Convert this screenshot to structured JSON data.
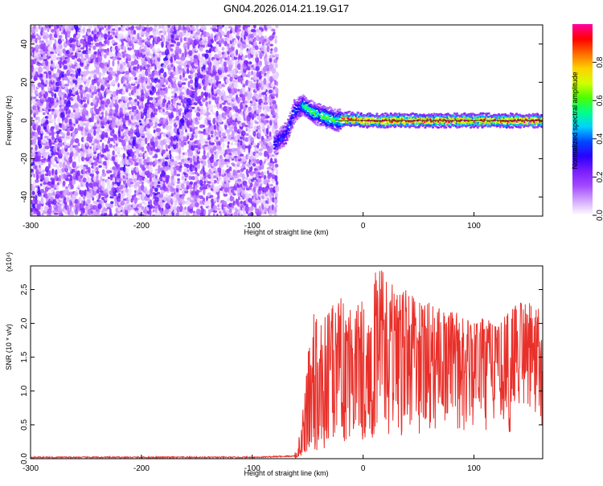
{
  "title": "GN04.2026.014.21.19.G17",
  "chart_data": [
    {
      "type": "heatmap",
      "title": "GN04.2026.014.21.19.G17",
      "xlabel": "Height of straight line (km)",
      "ylabel": "Frequency (Hz)",
      "xlim": [
        -300,
        162
      ],
      "ylim": [
        -50,
        50
      ],
      "x_ticks": [
        -300,
        -200,
        -100,
        0,
        100
      ],
      "y_ticks": [
        -40,
        -20,
        0,
        20,
        40
      ],
      "colorbar": {
        "label": "Normalized spectral amplitude",
        "range": [
          0.0,
          1.0
        ],
        "ticks": [
          0.0,
          0.2,
          0.4,
          0.6,
          0.8
        ],
        "colormap": [
          "#ffffff",
          "#d3a6ff",
          "#a349ff",
          "#7a1dff",
          "#2a00ff",
          "#0047ff",
          "#00d0ff",
          "#00ff8c",
          "#4cff00",
          "#d2ff00",
          "#ffd000",
          "#ff6a00",
          "#ff0000",
          "#ff00a0"
        ]
      },
      "noise_region_x": [
        -300,
        -78
      ],
      "doppler_trace": [
        {
          "x": -80,
          "f": -12
        },
        {
          "x": -70,
          "f": -7
        },
        {
          "x": -62,
          "f": 5
        },
        {
          "x": -55,
          "f": 8
        },
        {
          "x": -45,
          "f": 4
        },
        {
          "x": -35,
          "f": 2
        },
        {
          "x": -25,
          "f": 0
        },
        {
          "x": -15,
          "f": 1
        },
        {
          "x": 0,
          "f": 0
        },
        {
          "x": 162,
          "f": 0
        }
      ]
    },
    {
      "type": "line",
      "xlabel": "Height of straight line (km)",
      "ylabel": "SNR (10 * v/v)",
      "y_scale_label": "(x10⁴)",
      "xlim": [
        -300,
        162
      ],
      "ylim": [
        0,
        2.85
      ],
      "x_ticks": [
        -300,
        -200,
        -100,
        0,
        100
      ],
      "y_ticks": [
        0.0,
        0.5,
        1.0,
        1.5,
        2.0,
        2.5
      ],
      "series": [
        {
          "name": "SNR",
          "color": "#e8302a",
          "x": [
            -300,
            -100,
            -60,
            -55,
            -50,
            -45,
            -40,
            -30,
            -20,
            -10,
            0,
            10,
            20,
            30,
            40,
            50,
            60,
            70,
            80,
            90,
            100,
            110,
            120,
            130,
            140,
            150,
            162
          ],
          "baseline": [
            0.01,
            0.01,
            0.03,
            0.12,
            0.22,
            0.35,
            0.45,
            0.65,
            0.85,
            1.0,
            1.05,
            1.1,
            1.2,
            1.25,
            1.3,
            1.35,
            1.45,
            1.5,
            1.45,
            1.5,
            1.55,
            1.65,
            1.65,
            1.55,
            1.5,
            1.6,
            1.7
          ],
          "peaks": [
            0.01,
            0.01,
            0.1,
            0.6,
            1.5,
            2.15,
            2.2,
            2.2,
            2.45,
            2.15,
            2.4,
            2.75,
            2.8,
            2.45,
            2.5,
            2.3,
            2.35,
            2.2,
            2.2,
            2.1,
            2.0,
            2.1,
            1.95,
            2.15,
            2.3,
            2.3,
            2.2
          ]
        }
      ]
    }
  ]
}
